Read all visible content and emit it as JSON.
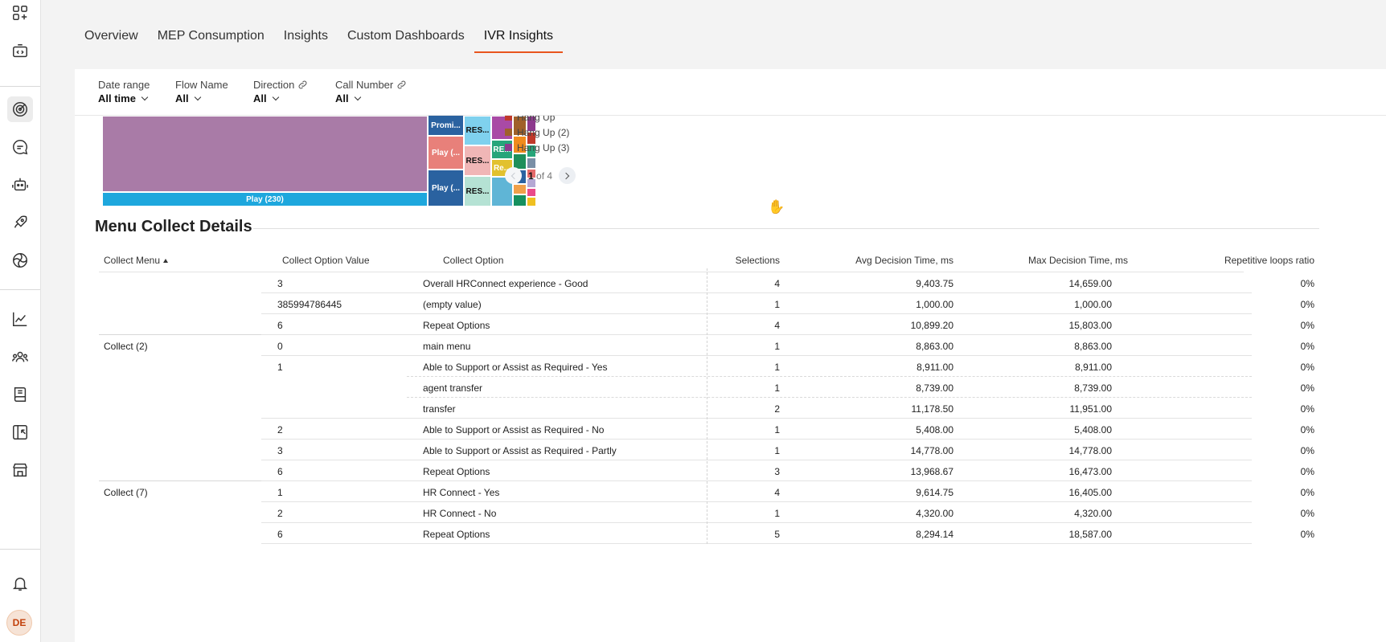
{
  "sidebar": {
    "icons": [
      "apps-icon",
      "code-icon",
      "target-icon",
      "chat-icon",
      "bot-icon",
      "rocket-icon",
      "ai-swirl-icon",
      "analytics-icon",
      "contacts-icon",
      "book-icon",
      "import-icon",
      "store-icon",
      "bell-icon"
    ],
    "avatar": "DE"
  },
  "tabs": [
    {
      "label": "Overview",
      "active": false
    },
    {
      "label": "MEP Consumption",
      "active": false
    },
    {
      "label": "Insights",
      "active": false
    },
    {
      "label": "Custom Dashboards",
      "active": false
    },
    {
      "label": "IVR Insights",
      "active": true
    }
  ],
  "filters": [
    {
      "label": "Date range",
      "value": "All time",
      "link": false
    },
    {
      "label": "Flow Name",
      "value": "All",
      "link": false
    },
    {
      "label": "Direction",
      "value": "All",
      "link": true
    },
    {
      "label": "Call Number",
      "value": "All",
      "link": true
    }
  ],
  "treemap": {
    "labels": {
      "main": "Play (230)",
      "block_a": "Play (...",
      "block_b": "Play (...",
      "block_c": "Promi...",
      "res1": "RES...",
      "res2": "RES...",
      "res3": "RES...",
      "re1": "RE...",
      "re2": "Re..."
    },
    "colors": {
      "main": "#a97ba7",
      "play": "#1ea7dd",
      "navy": "#2a62a0",
      "salmon": "#e8807a",
      "light_blue": "#7fd1ee",
      "pink": "#f0b6b6",
      "mint": "#b5e2d4"
    }
  },
  "legend": [
    {
      "label": "Hang Up",
      "color": "#c0392b"
    },
    {
      "label": "Hang Up (2)",
      "color": "#a0602a"
    },
    {
      "label": "Hang Up (3)",
      "color": "#8e3a8e"
    }
  ],
  "pager": {
    "current": "1",
    "of_text": "of 4"
  },
  "section": {
    "title": "Menu Collect Details"
  },
  "table": {
    "headers": {
      "collect_menu": "Collect Menu",
      "option_value": "Collect Option Value",
      "option": "Collect Option",
      "selections": "Selections",
      "avg": "Avg Decision Time, ms",
      "max": "Max Decision Time, ms",
      "loops": "Repetitive loops ratio"
    },
    "rows": [
      {
        "menu": "",
        "value": "3",
        "option": "Overall HRConnect experience - Good",
        "sel": "4",
        "avg": "9,403.75",
        "max": "14,659.00",
        "loops": "0%"
      },
      {
        "menu": "",
        "value": "385994786445",
        "option": "(empty value)",
        "sel": "1",
        "avg": "1,000.00",
        "max": "1,000.00",
        "loops": "0%"
      },
      {
        "menu": "",
        "value": "6",
        "option": "Repeat Options",
        "sel": "4",
        "avg": "10,899.20",
        "max": "15,803.00",
        "loops": "0%"
      },
      {
        "menu": "Collect (2)",
        "value": "0",
        "option": "main menu",
        "sel": "1",
        "avg": "8,863.00",
        "max": "8,863.00",
        "loops": "0%"
      },
      {
        "menu": "",
        "value": "1",
        "option": "Able to Support or Assist as Required - Yes",
        "sel": "1",
        "avg": "8,911.00",
        "max": "8,911.00",
        "loops": "0%"
      },
      {
        "menu": "",
        "value": "",
        "option": "agent transfer",
        "sel": "1",
        "avg": "8,739.00",
        "max": "8,739.00",
        "loops": "0%"
      },
      {
        "menu": "",
        "value": "",
        "option": "transfer",
        "sel": "2",
        "avg": "11,178.50",
        "max": "11,951.00",
        "loops": "0%"
      },
      {
        "menu": "",
        "value": "2",
        "option": "Able to Support or Assist as Required - No",
        "sel": "1",
        "avg": "5,408.00",
        "max": "5,408.00",
        "loops": "0%"
      },
      {
        "menu": "",
        "value": "3",
        "option": "Able to Support or Assist as Required - Partly",
        "sel": "1",
        "avg": "14,778.00",
        "max": "14,778.00",
        "loops": "0%"
      },
      {
        "menu": "",
        "value": "6",
        "option": "Repeat Options",
        "sel": "3",
        "avg": "13,968.67",
        "max": "16,473.00",
        "loops": "0%"
      },
      {
        "menu": "Collect (7)",
        "value": "1",
        "option": "HR Connect - Yes",
        "sel": "4",
        "avg": "9,614.75",
        "max": "16,405.00",
        "loops": "0%"
      },
      {
        "menu": "",
        "value": "2",
        "option": "HR Connect - No",
        "sel": "1",
        "avg": "4,320.00",
        "max": "4,320.00",
        "loops": "0%"
      },
      {
        "menu": "",
        "value": "6",
        "option": "Repeat Options",
        "sel": "5",
        "avg": "8,294.14",
        "max": "18,587.00",
        "loops": "0%"
      }
    ]
  }
}
